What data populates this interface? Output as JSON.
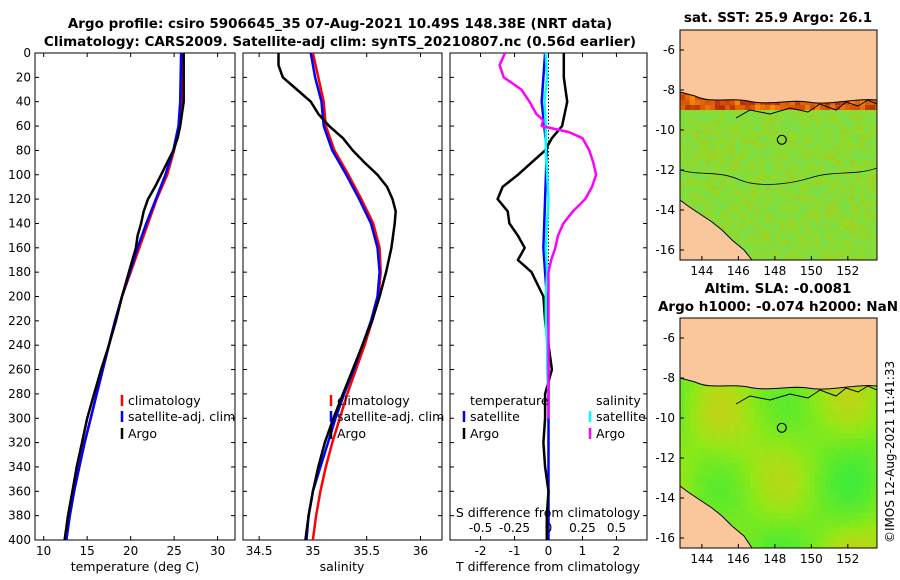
{
  "figure": {
    "title_line1": "Argo profile: csiro 5906645_35 07-Aug-2021 10.49S 148.38E (NRT data)",
    "title_line2": "Climatology: CARS2009. Satellite-adj clim: synTS_20210807.nc (0.56d earlier)",
    "map1_title": "sat. SST: 25.9 Argo: 26.1",
    "map2_title_line1": "Altim. SLA: -0.0081",
    "map2_title_line2": "Argo h1000: -0.074 h2000: NaN",
    "side_label": "©IMOS 12-Aug-2021 11:41:33"
  },
  "colors": {
    "climatology": "#ff0000",
    "satellite": "#0000ff",
    "argo": "#000000",
    "sat_salinity": "#00ffff",
    "argo_salinity": "#ff00ff",
    "land": "#f9c79b",
    "coast": "#000000"
  },
  "chart_data": [
    {
      "type": "line",
      "name": "temperature-profile",
      "xlabel": "temperature (deg C)",
      "ylabel": "",
      "xlim": [
        9,
        32
      ],
      "ylim": [
        400,
        0
      ],
      "xticks": [
        10,
        15,
        20,
        25,
        30
      ],
      "yticks": [
        0,
        20,
        40,
        60,
        80,
        100,
        120,
        140,
        160,
        180,
        200,
        220,
        240,
        260,
        280,
        300,
        320,
        340,
        360,
        380,
        400
      ],
      "legend": [
        "climatology",
        "satellite-adj. clim",
        "Argo"
      ],
      "series": [
        {
          "name": "climatology",
          "color": "red",
          "depth": [
            0,
            40,
            60,
            80,
            100,
            120,
            140,
            160,
            180,
            200,
            220,
            240,
            260,
            280,
            300,
            320,
            340,
            360,
            380,
            400
          ],
          "values": [
            26.0,
            25.9,
            25.6,
            25.0,
            24.2,
            23.0,
            22.0,
            21.0,
            20.0,
            19.0,
            18.2,
            17.5,
            16.8,
            16.1,
            15.4,
            14.7,
            14.1,
            13.5,
            13.0,
            12.6
          ]
        },
        {
          "name": "satellite-adj. clim",
          "color": "blue",
          "depth": [
            0,
            40,
            60,
            80,
            100,
            120,
            140,
            160,
            180,
            200,
            220,
            240,
            260,
            280,
            300,
            320,
            340,
            360,
            380,
            400
          ],
          "values": [
            25.8,
            25.7,
            25.5,
            24.9,
            24.0,
            22.9,
            21.8,
            20.8,
            19.9,
            19.0,
            18.2,
            17.5,
            16.8,
            16.1,
            15.4,
            14.7,
            14.1,
            13.5,
            13.0,
            12.6
          ]
        },
        {
          "name": "Argo",
          "color": "black",
          "depth": [
            0,
            20,
            40,
            60,
            70,
            80,
            90,
            100,
            110,
            120,
            130,
            140,
            150,
            160,
            170,
            180,
            200,
            220,
            240,
            260,
            280,
            300,
            320,
            340,
            360,
            380,
            400
          ],
          "values": [
            26.1,
            26.1,
            26.1,
            25.7,
            25.4,
            24.9,
            24.2,
            23.5,
            22.8,
            22.0,
            21.5,
            21.2,
            20.8,
            20.6,
            20.2,
            19.8,
            19.0,
            18.3,
            17.5,
            16.6,
            15.8,
            15.0,
            14.4,
            13.8,
            13.3,
            12.8,
            12.4
          ]
        }
      ]
    },
    {
      "type": "line",
      "name": "salinity-profile",
      "xlabel": "salinity",
      "ylabel": "",
      "xlim": [
        34.35,
        36.2
      ],
      "ylim": [
        400,
        0
      ],
      "xticks": [
        34.5,
        35,
        35.5,
        36
      ],
      "legend": [
        "climatology",
        "satellite-adj. clim",
        "Argo"
      ],
      "series": [
        {
          "name": "climatology",
          "color": "red",
          "depth": [
            0,
            20,
            40,
            60,
            80,
            100,
            120,
            140,
            160,
            180,
            200,
            220,
            240,
            260,
            280,
            300,
            320,
            340,
            360,
            380,
            400
          ],
          "values": [
            35.0,
            35.05,
            35.1,
            35.12,
            35.2,
            35.33,
            35.45,
            35.56,
            35.62,
            35.63,
            35.61,
            35.55,
            35.48,
            35.4,
            35.32,
            35.25,
            35.18,
            35.12,
            35.07,
            35.03,
            35.0
          ]
        },
        {
          "name": "satellite-adj. clim",
          "color": "blue",
          "depth": [
            0,
            20,
            40,
            60,
            80,
            100,
            120,
            140,
            160,
            180,
            200,
            220,
            240,
            260,
            280,
            300,
            320,
            340,
            360,
            380,
            400
          ],
          "values": [
            34.98,
            35.02,
            35.08,
            35.1,
            35.18,
            35.31,
            35.43,
            35.54,
            35.6,
            35.62,
            35.6,
            35.54,
            35.46,
            35.38,
            35.29,
            35.21,
            35.14,
            35.07,
            35.0,
            34.96,
            34.94
          ]
        },
        {
          "name": "Argo",
          "color": "black",
          "depth": [
            0,
            10,
            20,
            30,
            40,
            50,
            60,
            70,
            80,
            90,
            100,
            110,
            120,
            130,
            140,
            160,
            180,
            200,
            220,
            240,
            260,
            280,
            300,
            320,
            340,
            360,
            380,
            400
          ],
          "values": [
            34.68,
            34.68,
            34.72,
            34.85,
            34.98,
            35.05,
            35.15,
            35.28,
            35.37,
            35.48,
            35.6,
            35.69,
            35.74,
            35.77,
            35.76,
            35.73,
            35.68,
            35.62,
            35.55,
            35.46,
            35.37,
            35.28,
            35.19,
            35.11,
            35.05,
            35.0,
            34.96,
            34.93
          ]
        }
      ]
    },
    {
      "type": "line",
      "name": "difference-profile",
      "xlabel": "T difference from climatology",
      "secondary_xlabel": "S difference from climatology",
      "xlim": [
        -2.9,
        2.9
      ],
      "ylim": [
        400,
        0
      ],
      "xticks": [
        -2,
        -1,
        0,
        1,
        2
      ],
      "secondary_xticks": [
        -0.5,
        -0.25,
        0,
        0.25,
        0.5
      ],
      "secondary_xtick_labels": [
        "-0.5",
        "-0.25",
        "0",
        "0.25",
        "0.5"
      ],
      "legend_temperature_title": "temperature",
      "legend_salinity_title": "salinity",
      "legend_temperature": [
        "satellite",
        "Argo"
      ],
      "legend_salinity": [
        "satellite",
        "Argo"
      ],
      "series": [
        {
          "name": "T satellite",
          "color": "blue",
          "depth": [
            0,
            40,
            80,
            120,
            160,
            200,
            240,
            280,
            320,
            360,
            400
          ],
          "values": [
            -0.1,
            -0.2,
            -0.05,
            -0.1,
            -0.15,
            -0.05,
            0.0,
            0.0,
            0.0,
            0.0,
            0.0
          ]
        },
        {
          "name": "T Argo",
          "color": "black",
          "depth": [
            0,
            20,
            40,
            60,
            70,
            80,
            90,
            100,
            110,
            120,
            130,
            140,
            150,
            160,
            170,
            180,
            200,
            220,
            240,
            260,
            280,
            300,
            320,
            340,
            360,
            380,
            400
          ],
          "values": [
            0.45,
            0.45,
            0.55,
            0.4,
            0.1,
            -0.1,
            -0.5,
            -0.9,
            -1.35,
            -1.5,
            -1.2,
            -1.15,
            -0.9,
            -0.7,
            -0.9,
            -0.5,
            -0.15,
            -0.1,
            0.0,
            0.1,
            -0.1,
            -0.1,
            -0.15,
            -0.1,
            0.0,
            -0.05,
            -0.05
          ]
        },
        {
          "name": "S satellite",
          "color": "cyan",
          "depth": [
            0,
            20,
            40,
            60,
            80,
            100,
            120,
            140,
            160,
            180,
            200,
            220,
            240,
            260,
            280,
            300
          ],
          "values": [
            -0.02,
            -0.01,
            -0.03,
            -0.02,
            -0.02,
            -0.01,
            0.0,
            -0.01,
            -0.02,
            -0.01,
            -0.02,
            -0.02,
            -0.01,
            -0.01,
            0.0,
            0.0
          ]
        },
        {
          "name": "S Argo",
          "color": "magenta",
          "depth": [
            0,
            10,
            20,
            30,
            40,
            50,
            55,
            60,
            65,
            70,
            80,
            90,
            100,
            110,
            120,
            130,
            140,
            150,
            160,
            170,
            180,
            200,
            220,
            240,
            260,
            280,
            300
          ],
          "values": [
            -0.32,
            -0.36,
            -0.33,
            -0.2,
            -0.14,
            -0.09,
            -0.04,
            -0.05,
            0.15,
            0.25,
            0.3,
            0.33,
            0.35,
            0.32,
            0.27,
            0.18,
            0.11,
            0.07,
            0.05,
            0.02,
            0.0,
            0.0,
            0.0,
            0.0,
            0.0,
            0.0,
            0.0
          ]
        }
      ]
    },
    {
      "type": "heatmap",
      "name": "sst-map",
      "title": "sat. SST: 25.9 Argo: 26.1",
      "xlim": [
        142.8,
        153.6
      ],
      "ylim": [
        -16.5,
        -5
      ],
      "xticks": [
        144,
        146,
        148,
        150,
        152
      ],
      "yticks": [
        -6,
        -8,
        -10,
        -12,
        -14,
        -16
      ],
      "argo_position": {
        "lon": 148.38,
        "lat": -10.49
      }
    },
    {
      "type": "heatmap",
      "name": "sla-map",
      "title": "Altim. SLA: -0.0081",
      "xlim": [
        142.8,
        153.6
      ],
      "ylim": [
        -16.5,
        -5
      ],
      "xticks": [
        144,
        146,
        148,
        150,
        152
      ],
      "yticks": [
        -6,
        -8,
        -10,
        -12,
        -14,
        -16
      ],
      "argo_position": {
        "lon": 148.38,
        "lat": -10.49
      }
    }
  ]
}
